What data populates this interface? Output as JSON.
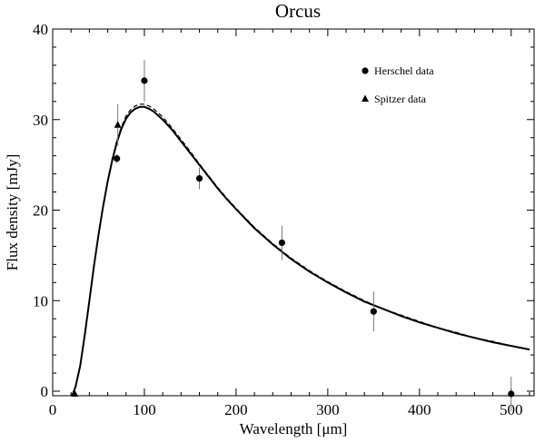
{
  "chart_data": {
    "type": "scatter",
    "title": "Orcus",
    "xlabel": "Wavelength [μm]",
    "ylabel": "Flux density [mJy]",
    "xlim": [
      0,
      525
    ],
    "ylim": [
      -0.5,
      40
    ],
    "xticks": [
      0,
      100,
      200,
      300,
      400,
      500
    ],
    "yticks": [
      0,
      10,
      20,
      30,
      40
    ],
    "grid": false,
    "legend_position": "top-right",
    "series": [
      {
        "name": "Herschel data",
        "marker": "circle",
        "points": [
          {
            "x": 70,
            "y": 25.7,
            "err": 0.5
          },
          {
            "x": 100,
            "y": 34.3,
            "err": 2.3
          },
          {
            "x": 160,
            "y": 23.5,
            "err": 1.2
          },
          {
            "x": 250,
            "y": 16.4,
            "err": 1.9
          },
          {
            "x": 350,
            "y": 8.8,
            "err": 2.2
          },
          {
            "x": 500,
            "y": -0.3,
            "err": 1.9
          }
        ]
      },
      {
        "name": "Spitzer data",
        "marker": "triangle",
        "points": [
          {
            "x": 24,
            "y": -0.3,
            "err": 0.2
          },
          {
            "x": 71,
            "y": 29.4,
            "err": 2.3
          }
        ]
      }
    ],
    "models": [
      {
        "style": "solid",
        "points": [
          [
            20,
            -0.5
          ],
          [
            22,
            -0.3
          ],
          [
            25,
            0.5
          ],
          [
            30,
            2.8
          ],
          [
            35,
            6.2
          ],
          [
            40,
            10
          ],
          [
            45,
            13.8
          ],
          [
            50,
            17.3
          ],
          [
            55,
            20.4
          ],
          [
            60,
            23.2
          ],
          [
            65,
            25.5
          ],
          [
            70,
            27.5
          ],
          [
            75,
            29
          ],
          [
            80,
            30.1
          ],
          [
            85,
            30.8
          ],
          [
            90,
            31.2
          ],
          [
            95,
            31.4
          ],
          [
            100,
            31.4
          ],
          [
            105,
            31.2
          ],
          [
            110,
            30.9
          ],
          [
            120,
            30
          ],
          [
            130,
            28.9
          ],
          [
            140,
            27.6
          ],
          [
            150,
            26.3
          ],
          [
            160,
            25
          ],
          [
            170,
            23.7
          ],
          [
            180,
            22.4
          ],
          [
            190,
            21.2
          ],
          [
            200,
            20.1
          ],
          [
            220,
            18
          ],
          [
            240,
            16.2
          ],
          [
            260,
            14.6
          ],
          [
            280,
            13.2
          ],
          [
            300,
            12
          ],
          [
            320,
            10.9
          ],
          [
            340,
            9.9
          ],
          [
            360,
            9.1
          ],
          [
            380,
            8.3
          ],
          [
            400,
            7.6
          ],
          [
            420,
            7
          ],
          [
            440,
            6.4
          ],
          [
            460,
            5.9
          ],
          [
            480,
            5.4
          ],
          [
            500,
            5
          ],
          [
            520,
            4.6
          ]
        ]
      },
      {
        "style": "dashed",
        "points": [
          [
            20,
            -0.5
          ],
          [
            22,
            -0.3
          ],
          [
            25,
            0.5
          ],
          [
            30,
            2.8
          ],
          [
            35,
            6.2
          ],
          [
            40,
            10
          ],
          [
            45,
            13.8
          ],
          [
            50,
            17.3
          ],
          [
            55,
            20.5
          ],
          [
            60,
            23.3
          ],
          [
            65,
            25.7
          ],
          [
            70,
            27.7
          ],
          [
            75,
            29.2
          ],
          [
            80,
            30.4
          ],
          [
            85,
            31.1
          ],
          [
            90,
            31.5
          ],
          [
            95,
            31.7
          ],
          [
            100,
            31.7
          ],
          [
            105,
            31.5
          ],
          [
            110,
            31.2
          ],
          [
            120,
            30.3
          ],
          [
            130,
            29.1
          ],
          [
            140,
            27.8
          ],
          [
            150,
            26.5
          ],
          [
            160,
            25.1
          ],
          [
            170,
            23.8
          ],
          [
            180,
            22.5
          ],
          [
            190,
            21.3
          ],
          [
            200,
            20.2
          ],
          [
            220,
            18.1
          ],
          [
            240,
            16.3
          ],
          [
            260,
            14.7
          ],
          [
            280,
            13.3
          ],
          [
            300,
            12.1
          ],
          [
            320,
            11
          ],
          [
            340,
            10
          ],
          [
            360,
            9.1
          ],
          [
            380,
            8.4
          ],
          [
            400,
            7.7
          ],
          [
            420,
            7
          ],
          [
            440,
            6.5
          ],
          [
            460,
            5.9
          ],
          [
            480,
            5.5
          ],
          [
            500,
            5
          ],
          [
            520,
            4.6
          ]
        ]
      }
    ]
  }
}
